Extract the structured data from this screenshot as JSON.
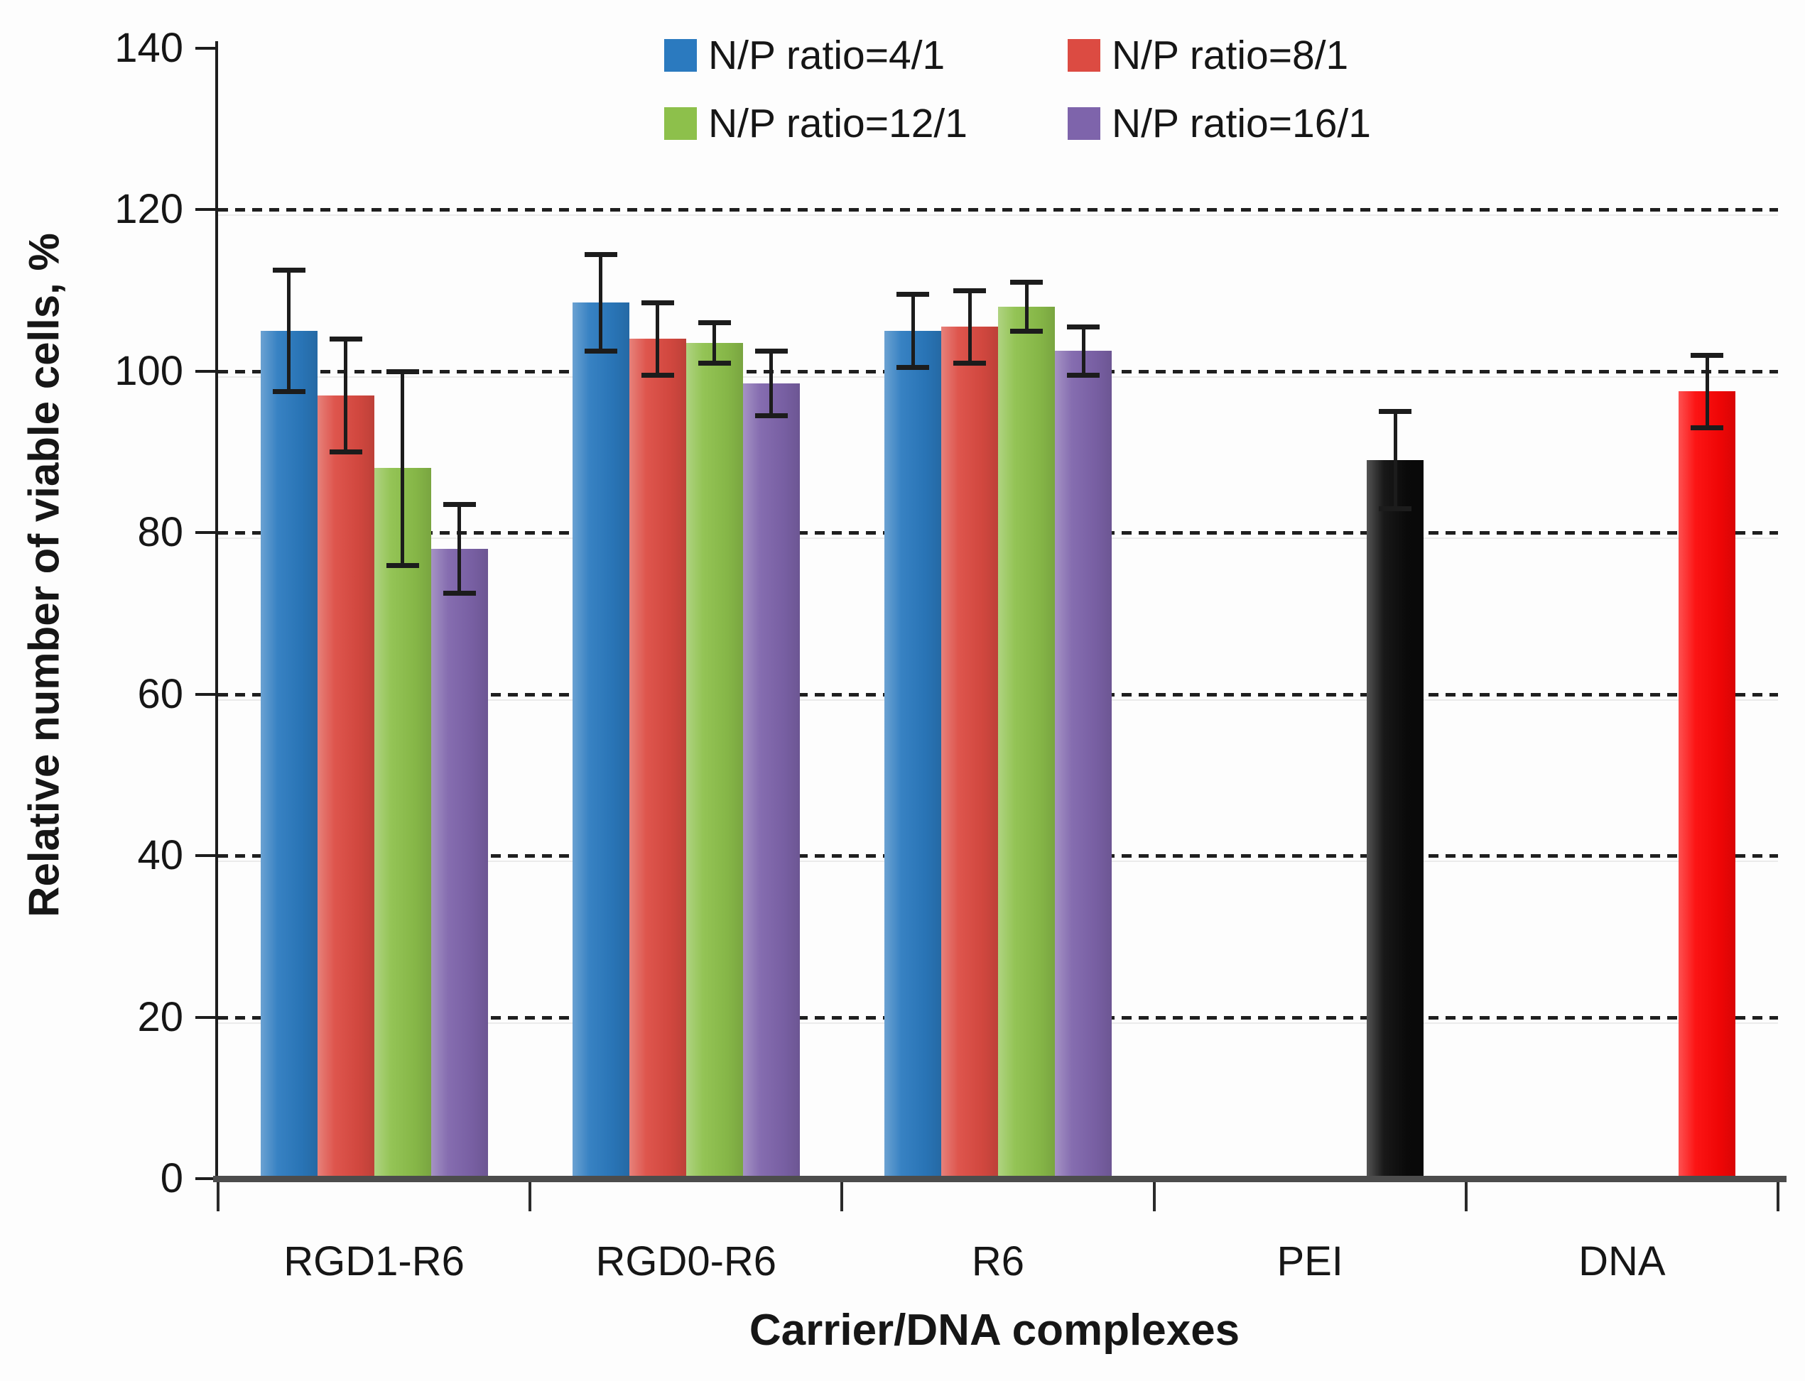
{
  "chart_data": {
    "type": "bar",
    "title": "",
    "xlabel": "Carrier/DNA complexes",
    "ylabel": "Relative number of viable cells, %",
    "ylim": [
      0,
      140
    ],
    "yticks": [
      0,
      20,
      40,
      60,
      80,
      100,
      120,
      140
    ],
    "gridlines_at": [
      20,
      40,
      60,
      80,
      100,
      120
    ],
    "grid_style": "dashed-horizontal",
    "legend_position": "top-center-2x2",
    "series": [
      {
        "name": "N/P ratio=4/1",
        "color": "#2b7abf"
      },
      {
        "name": "N/P ratio=8/1",
        "color": "#dc4b42"
      },
      {
        "name": "N/P ratio=12/1",
        "color": "#8dc04b"
      },
      {
        "name": "N/P ratio=16/1",
        "color": "#7e64ab"
      }
    ],
    "categories": [
      "RGD1-R6",
      "RGD0-R6",
      "R6",
      "PEI",
      "DNA"
    ],
    "groups": [
      {
        "category": "RGD1-R6",
        "bars": [
          {
            "series": 0,
            "value": 105,
            "error": 7.5
          },
          {
            "series": 1,
            "value": 97,
            "error": 7
          },
          {
            "series": 2,
            "value": 88,
            "error": 12
          },
          {
            "series": 3,
            "value": 78,
            "error": 5.5
          }
        ]
      },
      {
        "category": "RGD0-R6",
        "bars": [
          {
            "series": 0,
            "value": 108.5,
            "error": 6
          },
          {
            "series": 1,
            "value": 104,
            "error": 4.5
          },
          {
            "series": 2,
            "value": 103.5,
            "error": 2.5
          },
          {
            "series": 3,
            "value": 98.5,
            "error": 4
          }
        ]
      },
      {
        "category": "R6",
        "bars": [
          {
            "series": 0,
            "value": 105,
            "error": 4.5
          },
          {
            "series": 1,
            "value": 105.5,
            "error": 4.5
          },
          {
            "series": 2,
            "value": 108,
            "error": 3
          },
          {
            "series": 3,
            "value": 102.5,
            "error": 3
          }
        ]
      },
      {
        "category": "PEI",
        "bars": [
          {
            "series": null,
            "position": 3,
            "color": "#0a0a0a",
            "value": 89,
            "error": 6
          }
        ]
      },
      {
        "category": "DNA",
        "bars": [
          {
            "series": null,
            "position": 3,
            "color": "#fc0606",
            "value": 97.5,
            "error": 4.5
          }
        ]
      }
    ]
  }
}
